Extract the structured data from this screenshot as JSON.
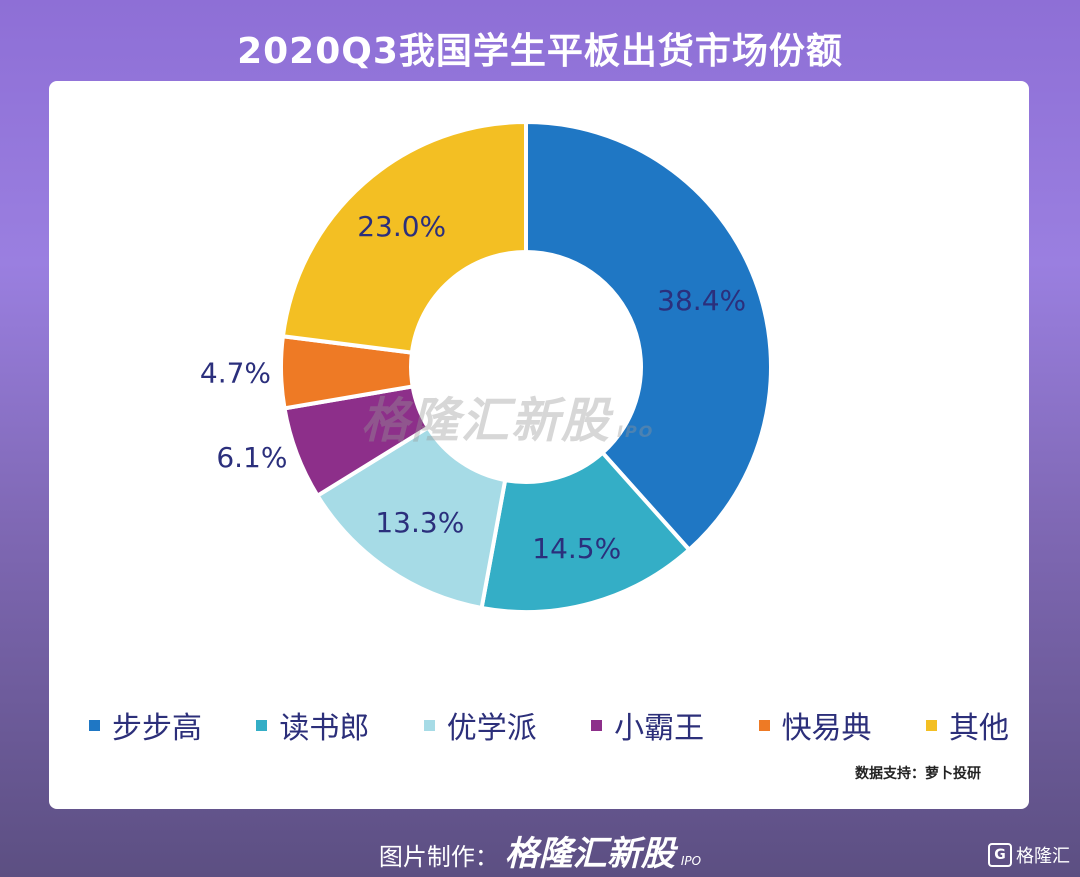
{
  "header": {
    "title": "2020Q3我国学生平板出货市场份额"
  },
  "chart_data": {
    "type": "pie",
    "title": "2020Q3我国学生平板出货市场份额",
    "categories": [
      "步步高",
      "读书郎",
      "优学派",
      "小霸王",
      "快易典",
      "其他"
    ],
    "values": [
      38.4,
      14.5,
      13.3,
      6.1,
      4.7,
      23.0
    ],
    "labels": [
      "38.4%",
      "14.5%",
      "13.3%",
      "6.1%",
      "4.7%",
      "23.0%"
    ],
    "colors": [
      "#1f77c4",
      "#34aec6",
      "#a6dbe6",
      "#8d2f8a",
      "#ee7a25",
      "#f3bf23"
    ],
    "legend_position": "bottom"
  },
  "source_text": "数据支持：萝卜投研",
  "watermark": {
    "text": "格隆汇新股",
    "sub": "IPO"
  },
  "footer": {
    "prefix": "图片制作：",
    "brand": "格隆汇新股",
    "ipo": "IPO"
  },
  "corner_logo": {
    "icon": "G",
    "text": "格隆汇"
  }
}
